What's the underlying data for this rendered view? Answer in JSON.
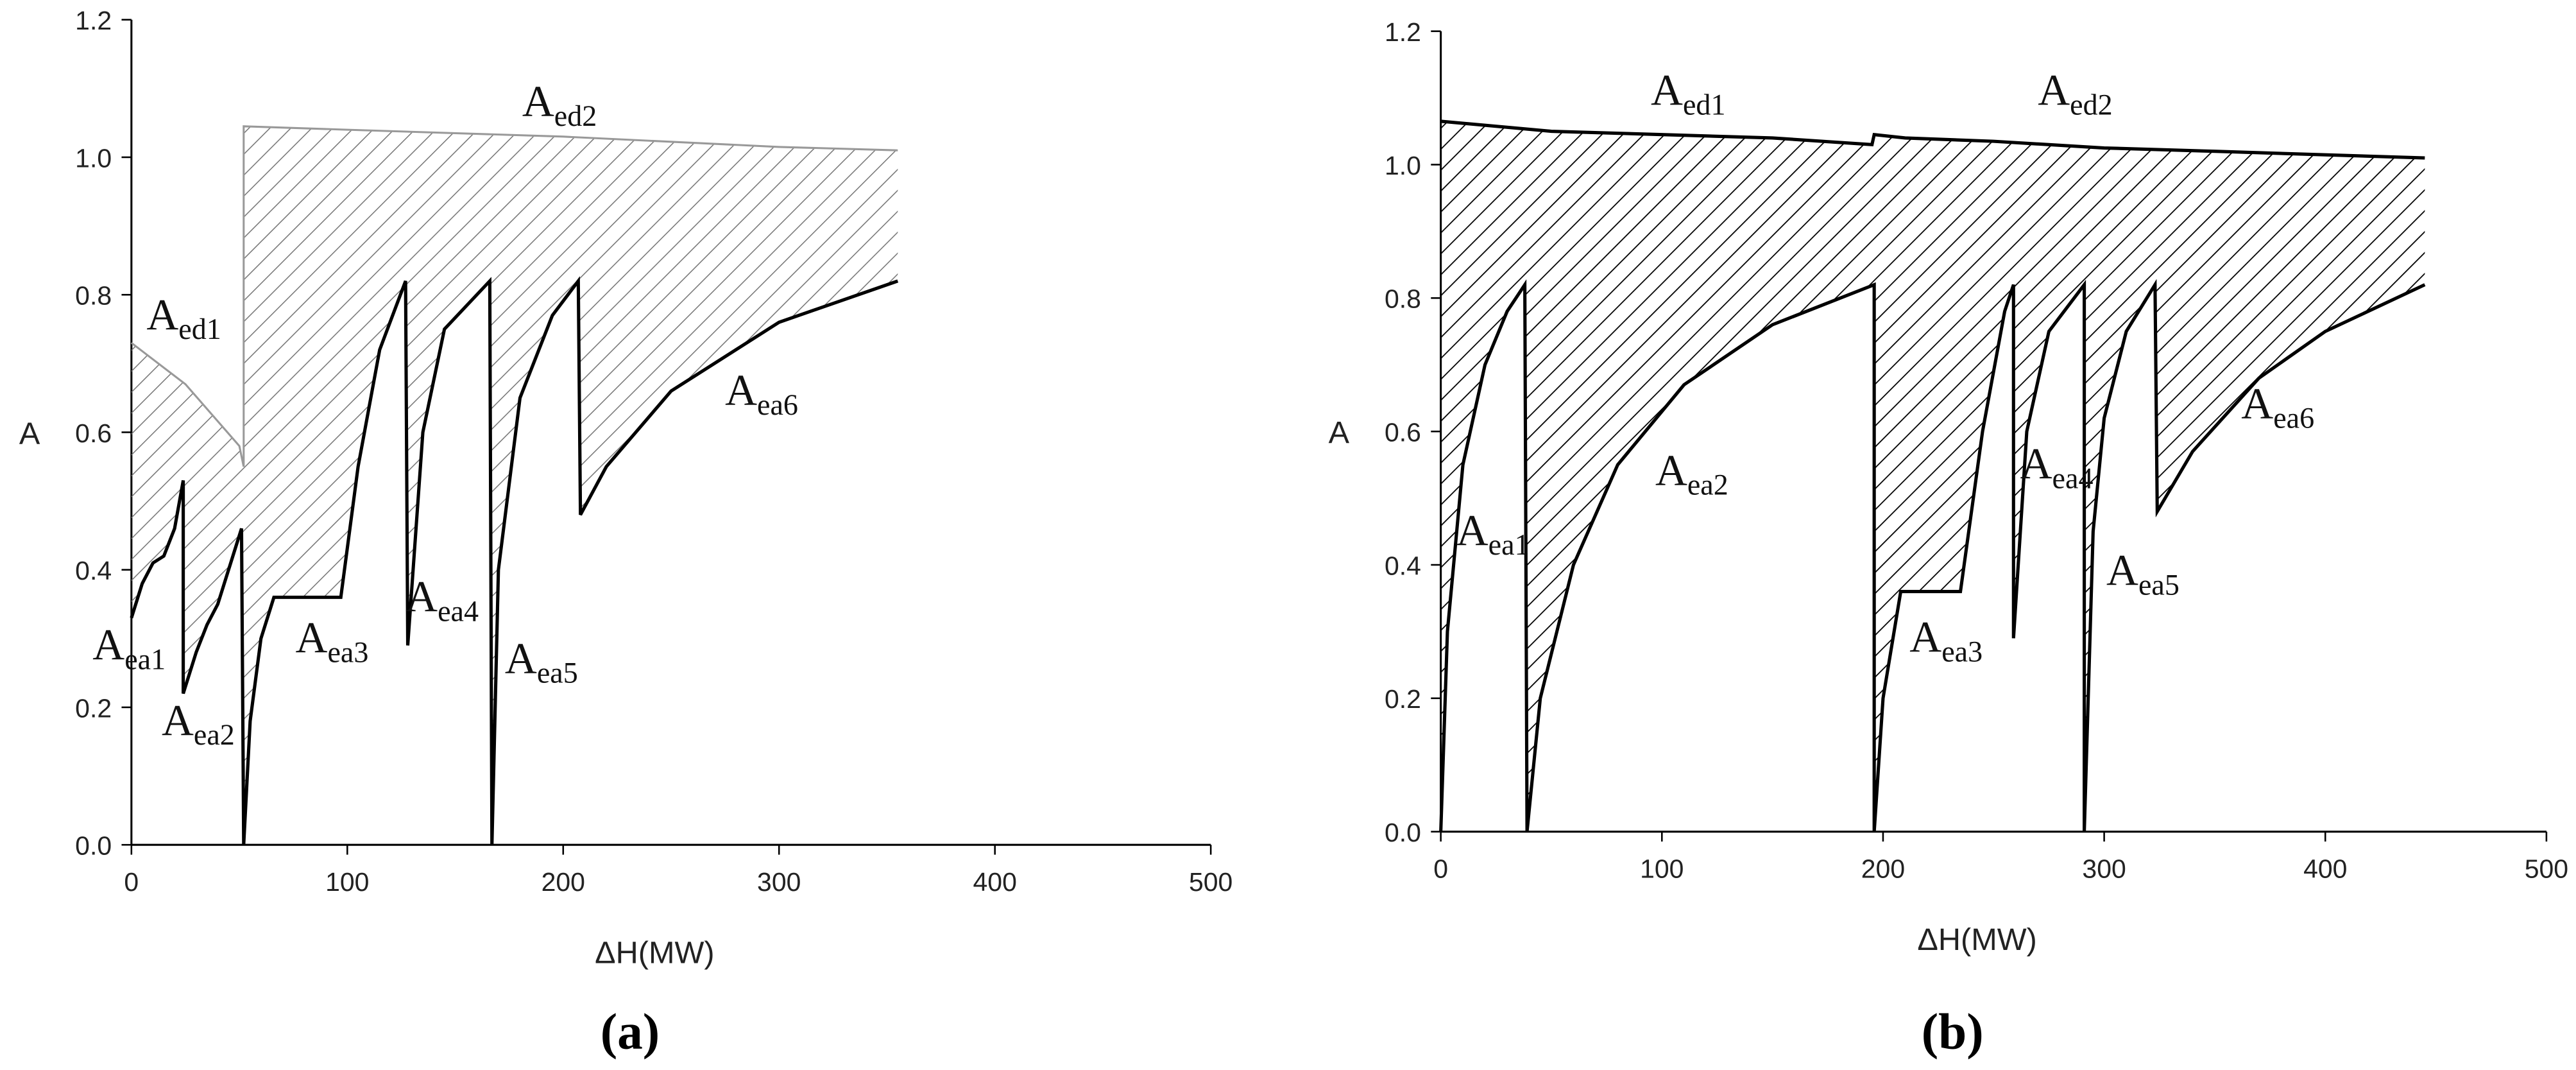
{
  "chart_data": [
    {
      "type": "area-between",
      "caption": "(a)",
      "xlabel": "ΔH(MW)",
      "ylabel": "A",
      "xlim": [
        0,
        500
      ],
      "xticks": [
        0,
        100,
        200,
        300,
        400,
        500
      ],
      "ylim": [
        0,
        1.2
      ],
      "yticks": [
        {
          "value": 0,
          "label": "0.0"
        },
        0.2,
        0.4,
        0.6,
        0.8,
        {
          "value": 1,
          "label": "1.0"
        },
        1.2
      ],
      "hatch_color": "#777777",
      "series": [
        {
          "color": "#999999",
          "x": [
            0,
            25,
            50,
            52,
            52,
            100,
            200,
            300,
            355
          ],
          "values": [
            0.73,
            0.67,
            0.58,
            0.55,
            1.045,
            1.04,
            1.03,
            1.015,
            1.01
          ]
        },
        {
          "color": "#000000",
          "x": [
            0,
            5,
            10,
            15,
            20,
            24,
            24,
            30,
            35,
            40,
            45,
            51,
            52,
            55,
            60,
            66,
            97,
            105,
            115,
            127,
            128,
            135,
            145,
            166,
            167,
            170,
            180,
            195,
            207,
            208,
            220,
            250,
            300,
            355
          ],
          "values": [
            0.33,
            0.38,
            0.41,
            0.42,
            0.46,
            0.53,
            0.22,
            0.28,
            0.32,
            0.35,
            0.4,
            0.46,
            0,
            0.18,
            0.3,
            0.36,
            0.36,
            0.55,
            0.72,
            0.82,
            0.29,
            0.6,
            0.75,
            0.82,
            0,
            0.4,
            0.65,
            0.77,
            0.82,
            0.48,
            0.55,
            0.66,
            0.76,
            0.82
          ]
        }
      ],
      "annotations": [
        "Aed1",
        "Aed2",
        "Aea1",
        "Aea2",
        "Aea3",
        "Aea4",
        "Aea5",
        "Aea6"
      ]
    },
    {
      "type": "area-between",
      "caption": "(b)",
      "xlabel": "ΔH(MW)",
      "ylabel": "A",
      "xlim": [
        0,
        500
      ],
      "xticks": [
        0,
        100,
        200,
        300,
        400,
        500
      ],
      "ylim": [
        0,
        1.2
      ],
      "yticks": [
        {
          "value": 0,
          "label": "0.0"
        },
        0.2,
        0.4,
        0.6,
        0.8,
        {
          "value": 1,
          "label": "1.0"
        },
        1.2
      ],
      "hatch_color": "#000000",
      "series": [
        {
          "color": "#000000",
          "x": [
            0,
            50,
            100,
            150,
            195,
            196,
            210,
            250,
            300,
            350,
            445
          ],
          "values": [
            1.065,
            1.05,
            1.045,
            1.04,
            1.03,
            1.045,
            1.04,
            1.035,
            1.025,
            1.02,
            1.01
          ]
        },
        {
          "color": "#000000",
          "x": [
            0,
            3,
            10,
            20,
            30,
            38,
            39,
            45,
            60,
            80,
            110,
            150,
            196,
            196,
            200,
            205,
            208,
            235,
            245,
            255,
            259,
            259,
            265,
            275,
            291,
            291,
            295,
            300,
            310,
            323,
            324,
            340,
            370,
            400,
            445
          ],
          "values": [
            0,
            0.3,
            0.55,
            0.7,
            0.78,
            0.82,
            0,
            0.2,
            0.4,
            0.55,
            0.67,
            0.76,
            0.82,
            0,
            0.2,
            0.3,
            0.36,
            0.36,
            0.6,
            0.78,
            0.82,
            0.29,
            0.6,
            0.75,
            0.82,
            0,
            0.45,
            0.62,
            0.75,
            0.82,
            0.48,
            0.57,
            0.68,
            0.75,
            0.82
          ]
        }
      ],
      "annotations": [
        "Aed1",
        "Aed2",
        "Aea1",
        "Aea2",
        "Aea3",
        "Aea4",
        "Aea5",
        "Aea6"
      ]
    }
  ]
}
